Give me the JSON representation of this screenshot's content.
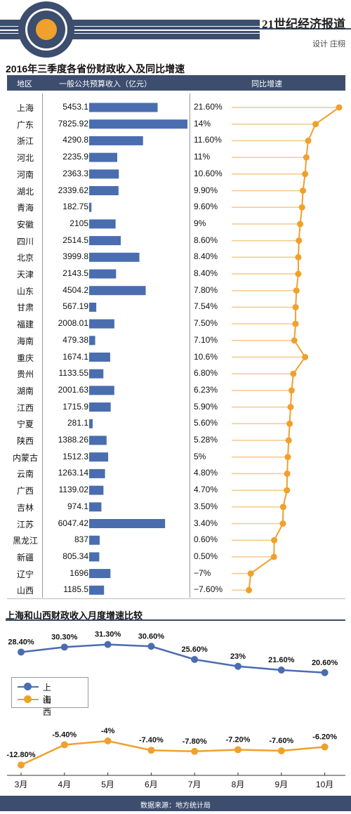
{
  "brand": "21世纪经济报道",
  "credit": "设计 庄栩",
  "source": "数据来源：地方统计局",
  "colors": {
    "navy": "#3c4d6e",
    "bar": "#4a6db0",
    "orange": "#f0a02c",
    "blue_line": "#4a6db0",
    "light_orange": "#f5c98c"
  },
  "chart_data": [
    {
      "type": "table",
      "title": "2016年三季度各省份财政收入及同比增速",
      "headers": [
        "地区",
        "一般公共预算收入（亿元）",
        "同比增速"
      ],
      "rows": [
        {
          "region": "上海",
          "revenue": "5453.1",
          "growth": "21.60%",
          "revenue_value": 5453.1,
          "growth_value": 21.6
        },
        {
          "region": "广东",
          "revenue": "7825.92",
          "growth": "14%",
          "revenue_value": 7825.92,
          "growth_value": 14
        },
        {
          "region": "浙江",
          "revenue": "4290.8",
          "growth": "11.60%",
          "revenue_value": 4290.8,
          "growth_value": 11.6
        },
        {
          "region": "河北",
          "revenue": "2235.9",
          "growth": "11%",
          "revenue_value": 2235.9,
          "growth_value": 11
        },
        {
          "region": "河南",
          "revenue": "2363.3",
          "growth": "10.60%",
          "revenue_value": 2363.3,
          "growth_value": 10.6
        },
        {
          "region": "湖北",
          "revenue": "2339.62",
          "growth": "9.90%",
          "revenue_value": 2339.62,
          "growth_value": 9.9
        },
        {
          "region": "青海",
          "revenue": "182.75",
          "growth": "9.60%",
          "revenue_value": 182.75,
          "growth_value": 9.6
        },
        {
          "region": "安徽",
          "revenue": "2105",
          "growth": "9%",
          "revenue_value": 2105,
          "growth_value": 9
        },
        {
          "region": "四川",
          "revenue": "2514.5",
          "growth": "8.60%",
          "revenue_value": 2514.5,
          "growth_value": 8.6
        },
        {
          "region": "北京",
          "revenue": "3999.8",
          "growth": "8.40%",
          "revenue_value": 3999.8,
          "growth_value": 8.4
        },
        {
          "region": "天津",
          "revenue": "2143.5",
          "growth": "8.40%",
          "revenue_value": 2143.5,
          "growth_value": 8.4
        },
        {
          "region": "山东",
          "revenue": "4504.2",
          "growth": "7.80%",
          "revenue_value": 4504.2,
          "growth_value": 7.8
        },
        {
          "region": "甘肃",
          "revenue": "567.19",
          "growth": "7.54%",
          "revenue_value": 567.19,
          "growth_value": 7.54
        },
        {
          "region": "福建",
          "revenue": "2008.01",
          "growth": "7.50%",
          "revenue_value": 2008.01,
          "growth_value": 7.5
        },
        {
          "region": "海南",
          "revenue": "479.38",
          "growth": "7.10%",
          "revenue_value": 479.38,
          "growth_value": 7.1
        },
        {
          "region": "重庆",
          "revenue": "1674.1",
          "growth": "10.6%",
          "revenue_value": 1674.1,
          "growth_value": 10.6
        },
        {
          "region": "贵州",
          "revenue": "1133.55",
          "growth": "6.80%",
          "revenue_value": 1133.55,
          "growth_value": 6.8
        },
        {
          "region": "湖南",
          "revenue": "2001.63",
          "growth": "6.23%",
          "revenue_value": 2001.63,
          "growth_value": 6.23
        },
        {
          "region": "江西",
          "revenue": "1715.9",
          "growth": "5.90%",
          "revenue_value": 1715.9,
          "growth_value": 5.9
        },
        {
          "region": "宁夏",
          "revenue": "281.1",
          "growth": "5.60%",
          "revenue_value": 281.1,
          "growth_value": 5.6
        },
        {
          "region": "陕西",
          "revenue": "1388.26",
          "growth": "5.28%",
          "revenue_value": 1388.26,
          "growth_value": 5.28
        },
        {
          "region": "内蒙古",
          "revenue": "1512.3",
          "growth": "5%",
          "revenue_value": 1512.3,
          "growth_value": 5
        },
        {
          "region": "云南",
          "revenue": "1263.14",
          "growth": "4.80%",
          "revenue_value": 1263.14,
          "growth_value": 4.8
        },
        {
          "region": "广西",
          "revenue": "1139.02",
          "growth": "4.70%",
          "revenue_value": 1139.02,
          "growth_value": 4.7
        },
        {
          "region": "吉林",
          "revenue": "974.1",
          "growth": "3.50%",
          "revenue_value": 974.1,
          "growth_value": 3.5
        },
        {
          "region": "江苏",
          "revenue": "6047.42",
          "growth": "3.40%",
          "revenue_value": 6047.42,
          "growth_value": 3.4
        },
        {
          "region": "黑龙江",
          "revenue": "837",
          "growth": "0.60%",
          "revenue_value": 837,
          "growth_value": 0.6
        },
        {
          "region": "新疆",
          "revenue": "805.34",
          "growth": "0.50%",
          "revenue_value": 805.34,
          "growth_value": 0.5
        },
        {
          "region": "辽宁",
          "revenue": "1696",
          "growth": "−7%",
          "revenue_value": 1696,
          "growth_value": -7
        },
        {
          "region": "山西",
          "revenue": "1185.5",
          "growth": "−7.60%",
          "revenue_value": 1185.5,
          "growth_value": -7.6
        }
      ]
    },
    {
      "type": "line",
      "title": "上海和山西财政收入月度增速比较",
      "categories": [
        "3月",
        "4月",
        "5月",
        "6月",
        "7月",
        "8月",
        "9月",
        "10月"
      ],
      "legend": "left",
      "series": [
        {
          "name": "上海",
          "color": "#4a6db0",
          "values": [
            28.4,
            30.3,
            31.3,
            30.6,
            25.6,
            23,
            21.6,
            20.6
          ],
          "labels": [
            "28.40%",
            "30.30%",
            "31.30%",
            "30.60%",
            "25.60%",
            "23%",
            "21.60%",
            "20.60%"
          ]
        },
        {
          "name": "山西",
          "color": "#f0a02c",
          "values": [
            -12.8,
            -5.4,
            -4,
            -7.4,
            -7.8,
            -7.2,
            -7.6,
            -6.2
          ],
          "labels": [
            "-12.80%",
            "-5.40%",
            "-4%",
            "-7.40%",
            "-7.80%",
            "-7.20%",
            "-7.60%",
            "-6.20%"
          ]
        }
      ]
    }
  ]
}
